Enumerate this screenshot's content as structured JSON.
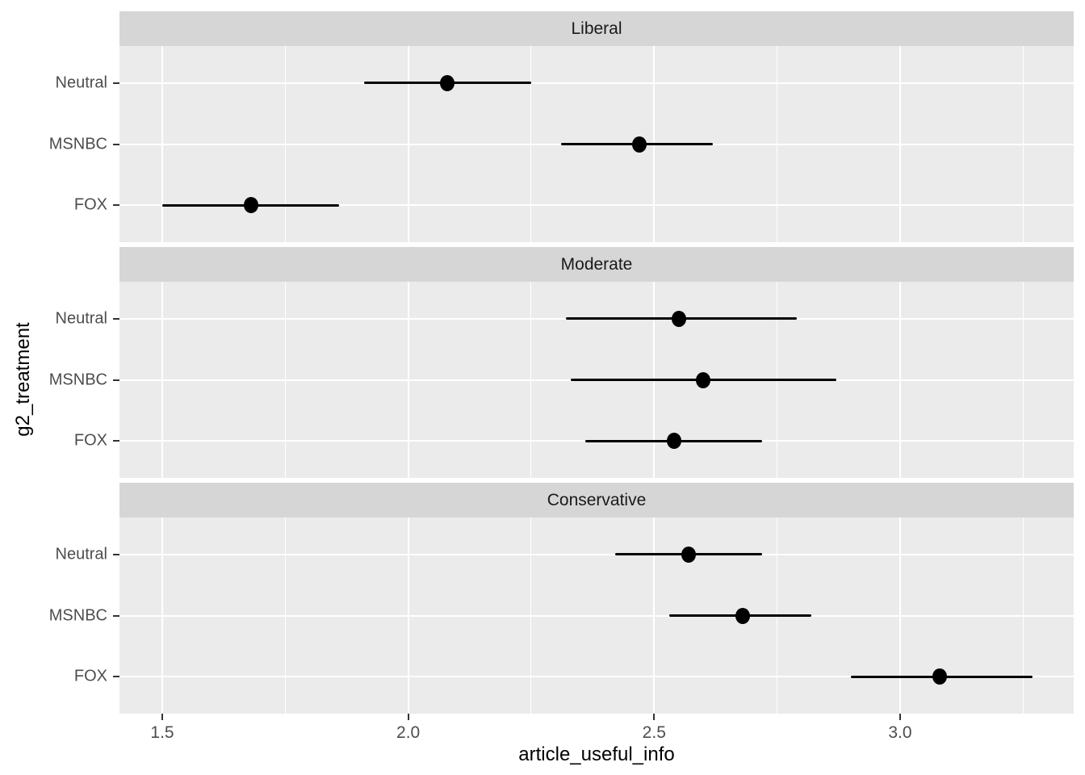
{
  "chart_data": {
    "type": "pointrange",
    "title": "",
    "xlabel": "article_useful_info",
    "ylabel": "g2_treatment",
    "xlim": [
      1.413,
      3.353
    ],
    "x_ticks": [
      1.5,
      2.0,
      2.5,
      3.0
    ],
    "x_tick_labels": [
      "1.5",
      "2.0",
      "2.5",
      "3.0"
    ],
    "x_minor_ticks": [
      1.75,
      2.25,
      2.75,
      3.25
    ],
    "grid": true,
    "legend_position": "none",
    "facets": [
      {
        "label": "Liberal",
        "rows": [
          {
            "category": "Neutral",
            "estimate": 2.08,
            "lower": 1.91,
            "upper": 2.25
          },
          {
            "category": "MSNBC",
            "estimate": 2.47,
            "lower": 2.31,
            "upper": 2.62
          },
          {
            "category": "FOX",
            "estimate": 1.68,
            "lower": 1.5,
            "upper": 1.86
          }
        ]
      },
      {
        "label": "Moderate",
        "rows": [
          {
            "category": "Neutral",
            "estimate": 2.55,
            "lower": 2.32,
            "upper": 2.79
          },
          {
            "category": "MSNBC",
            "estimate": 2.6,
            "lower": 2.33,
            "upper": 2.87
          },
          {
            "category": "FOX",
            "estimate": 2.54,
            "lower": 2.36,
            "upper": 2.72
          }
        ]
      },
      {
        "label": "Conservative",
        "rows": [
          {
            "category": "Neutral",
            "estimate": 2.57,
            "lower": 2.42,
            "upper": 2.72
          },
          {
            "category": "MSNBC",
            "estimate": 2.68,
            "lower": 2.53,
            "upper": 2.82
          },
          {
            "category": "FOX",
            "estimate": 3.08,
            "lower": 2.9,
            "upper": 3.27
          }
        ]
      }
    ]
  },
  "colors": {
    "page_background": "#FFFFFF",
    "panel_background": "#EBEBEB",
    "strip_background": "#D6D6D6",
    "gridline": "#FFFFFF",
    "point": "#000000",
    "axis_text": "#4D4D4D",
    "strip_text": "#1A1A1A",
    "tick_mark": "#333333"
  }
}
